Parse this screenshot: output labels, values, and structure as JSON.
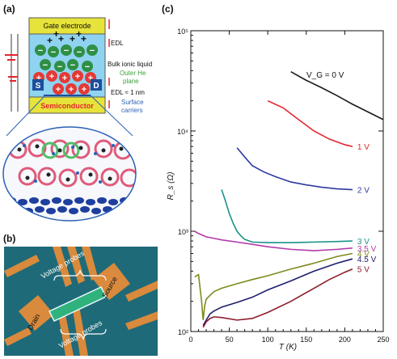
{
  "panels": {
    "a": "(a)",
    "b": "(b)",
    "c": "(c)"
  },
  "panel_a": {
    "gate_label": "Gate electrode",
    "edl_top": "EDL",
    "bulk_label": "Bulk ionic liquid",
    "outer_he_line1": "Outer He",
    "outer_he_line2": "plane",
    "edl_bottom": "EDL ≈ 1 nm",
    "surface_line1": "Surface",
    "surface_line2": "carriers",
    "source_label": "S",
    "drain_label": "D",
    "semiconductor_label": "Semiconductor",
    "colors": {
      "gate": "#e6e33a",
      "liquid": "#8fd3f1",
      "anion": "#2f8f45",
      "cation": "#e53935",
      "electrode": "#1c4f9c",
      "callout": "#3aa23a",
      "blue_text": "#2a62b5",
      "red_text": "#e3262c"
    }
  },
  "panel_b": {
    "voltage_probes_top": "Voltage probes",
    "voltage_probes_bottom": "Voltage probes",
    "source": "Source",
    "drain": "Drain",
    "colors": {
      "background": "#1f6a78",
      "electrodes": "#d98a3c",
      "channel": "#2fb27c"
    }
  },
  "chart_data": {
    "type": "line",
    "xlabel": "T (K)",
    "ylabel": "R_s (Ω)",
    "xlim": [
      0,
      250
    ],
    "ylim": [
      100,
      100000
    ],
    "yscale": "log",
    "x_ticks": [
      "0",
      "50",
      "100",
      "150",
      "200",
      "250"
    ],
    "y_ticks": [
      "10²",
      "10³",
      "10⁴",
      "10⁵"
    ],
    "series": [
      {
        "name": "V_G = 0 V",
        "color": "#1a1a1a",
        "x": [
          130,
          150,
          170,
          190,
          210,
          230,
          250
        ],
        "y": [
          39000,
          32000,
          27000,
          22500,
          18500,
          15500,
          13000
        ]
      },
      {
        "name": "1 V",
        "color": "#e3262c",
        "x": [
          100,
          120,
          140,
          160,
          180,
          200,
          210
        ],
        "y": [
          20000,
          17000,
          13000,
          10000,
          8300,
          7300,
          7000
        ]
      },
      {
        "name": "2 V",
        "color": "#2b3aa0",
        "x": [
          60,
          70,
          80,
          95,
          110,
          130,
          150,
          170,
          190,
          210
        ],
        "y": [
          6800,
          5500,
          4500,
          3900,
          3500,
          3100,
          2900,
          2750,
          2650,
          2600
        ]
      },
      {
        "name": "3 V",
        "color": "#19938a",
        "x": [
          40,
          45,
          50,
          55,
          60,
          65,
          70,
          80,
          100,
          130,
          160,
          190,
          210
        ],
        "y": [
          2600,
          2000,
          1500,
          1200,
          1000,
          900,
          830,
          780,
          770,
          770,
          780,
          790,
          800
        ]
      },
      {
        "name": "3.5 V",
        "color": "#b33aa8",
        "x": [
          5,
          10,
          20,
          30,
          40,
          60,
          80,
          100,
          130,
          160,
          190,
          210
        ],
        "y": [
          1000,
          950,
          880,
          850,
          820,
          780,
          740,
          700,
          660,
          640,
          660,
          680
        ]
      },
      {
        "name": "4 V",
        "color": "#7f8a1e",
        "x": [
          5,
          10,
          14,
          16,
          18,
          20,
          25,
          30,
          40,
          60,
          80,
          100,
          130,
          160,
          190,
          210
        ],
        "y": [
          350,
          370,
          200,
          130,
          180,
          210,
          230,
          250,
          270,
          300,
          330,
          360,
          420,
          480,
          560,
          600
        ]
      },
      {
        "name": "4.5 V",
        "color": "#1e1e6e",
        "x": [
          16,
          20,
          25,
          30,
          40,
          60,
          80,
          100,
          130,
          160,
          190,
          210
        ],
        "y": [
          115,
          130,
          150,
          160,
          175,
          195,
          220,
          260,
          320,
          400,
          480,
          530
        ]
      },
      {
        "name": "5 V",
        "color": "#8c1c2a",
        "x": [
          16,
          20,
          25,
          30,
          40,
          60,
          80,
          100,
          130,
          160,
          180,
          200,
          210
        ],
        "y": [
          110,
          125,
          135,
          140,
          138,
          130,
          135,
          155,
          200,
          270,
          330,
          390,
          420
        ]
      }
    ]
  }
}
